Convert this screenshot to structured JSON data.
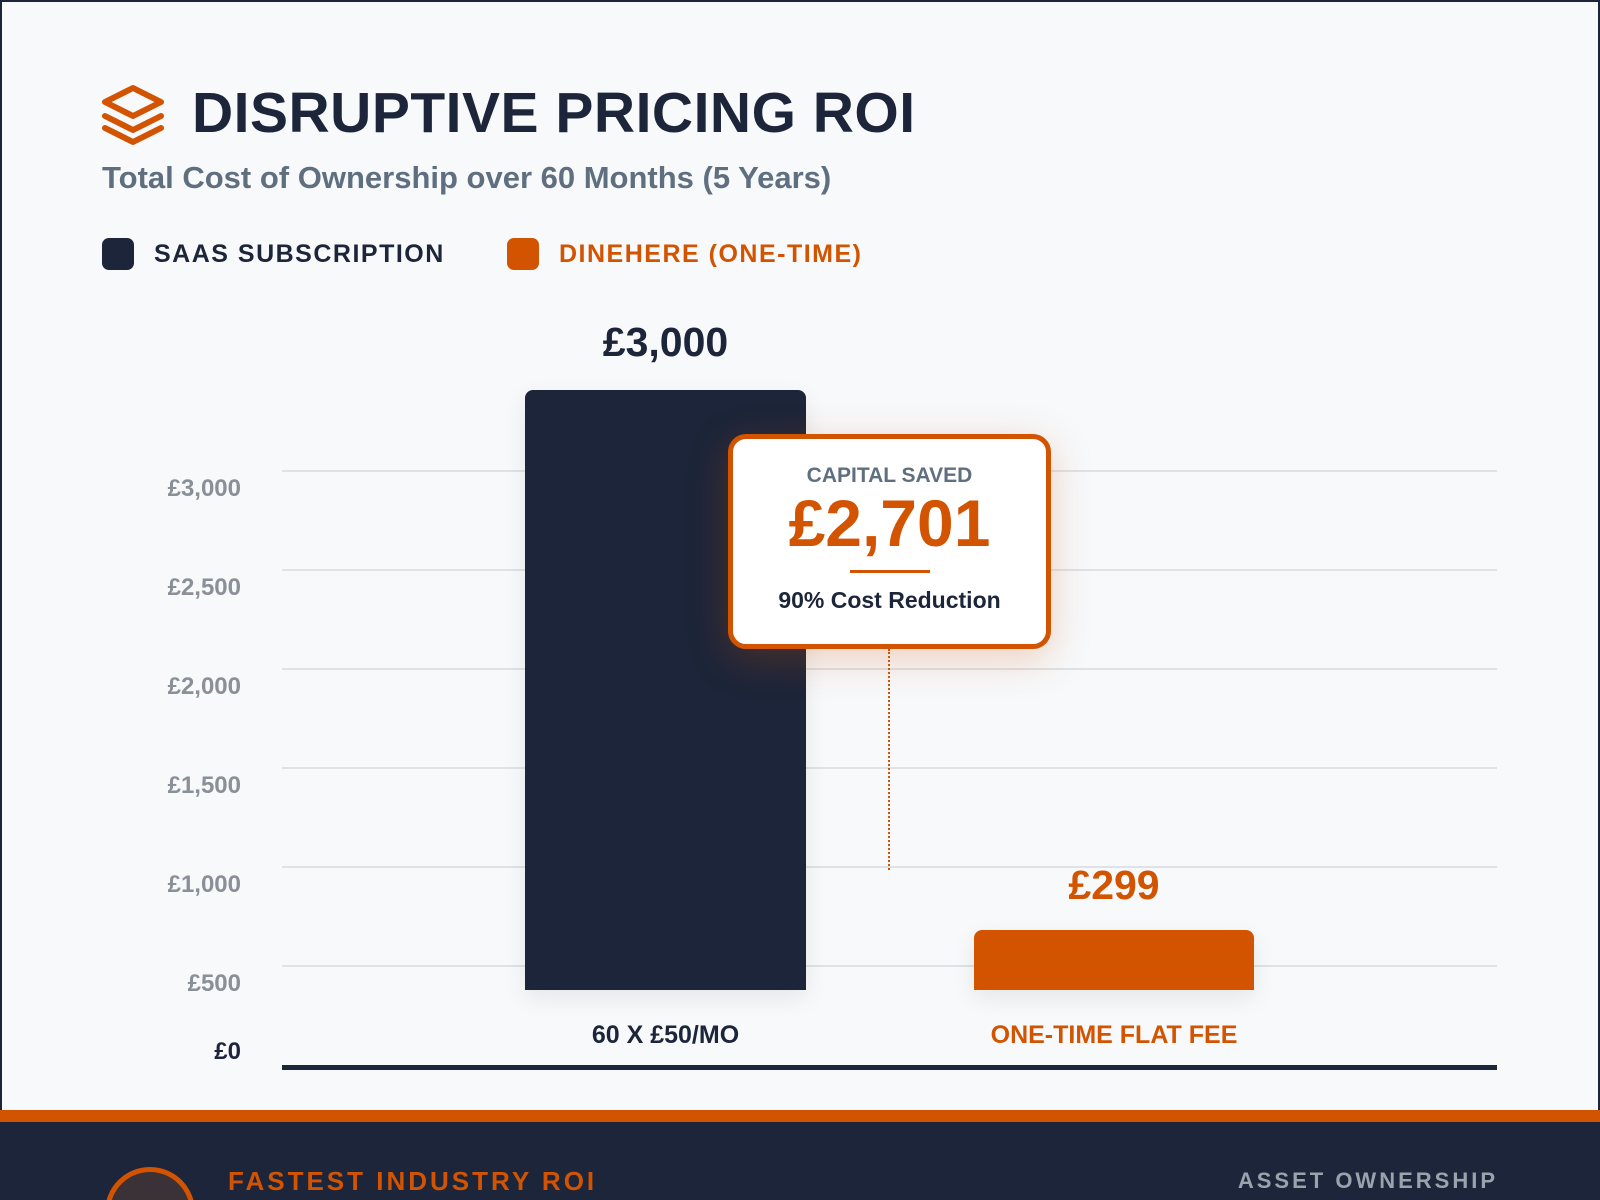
{
  "header": {
    "title": "DISRUPTIVE PRICING ROI",
    "subtitle": "Total Cost of Ownership over 60 Months (5 Years)",
    "icon": "layers-icon"
  },
  "legend": [
    {
      "label": "SAAS SUBSCRIPTION",
      "color": "#1c2539"
    },
    {
      "label": "DINEHERE (ONE-TIME)",
      "color": "#d35400"
    }
  ],
  "chart_data": {
    "type": "bar",
    "title": "DISRUPTIVE PRICING ROI",
    "subtitle": "Total Cost of Ownership over 60 Months (5 Years)",
    "categories": [
      "60 X £50/MO",
      "ONE-TIME FLAT FEE"
    ],
    "series": [
      {
        "name": "SAAS SUBSCRIPTION",
        "values": [
          3000,
          null
        ]
      },
      {
        "name": "DINEHERE (ONE-TIME)",
        "values": [
          null,
          299
        ]
      }
    ],
    "values": [
      3000,
      299
    ],
    "value_labels": [
      "£3,000",
      "£299"
    ],
    "yticks": [
      0,
      500,
      1000,
      1500,
      2000,
      2500,
      3000
    ],
    "ytick_labels": [
      "£0",
      "£500",
      "£1,000",
      "£1,500",
      "£2,000",
      "£2,500",
      "£3,000"
    ],
    "ylim": [
      0,
      3000
    ],
    "grid": true,
    "legend_position": "top-left",
    "annotation": {
      "label": "CAPITAL SAVED",
      "value": "£2,701",
      "note": "90% Cost Reduction"
    }
  },
  "footer": {
    "left_label": "FASTEST INDUSTRY ROI",
    "right_label": "ASSET OWNERSHIP"
  }
}
